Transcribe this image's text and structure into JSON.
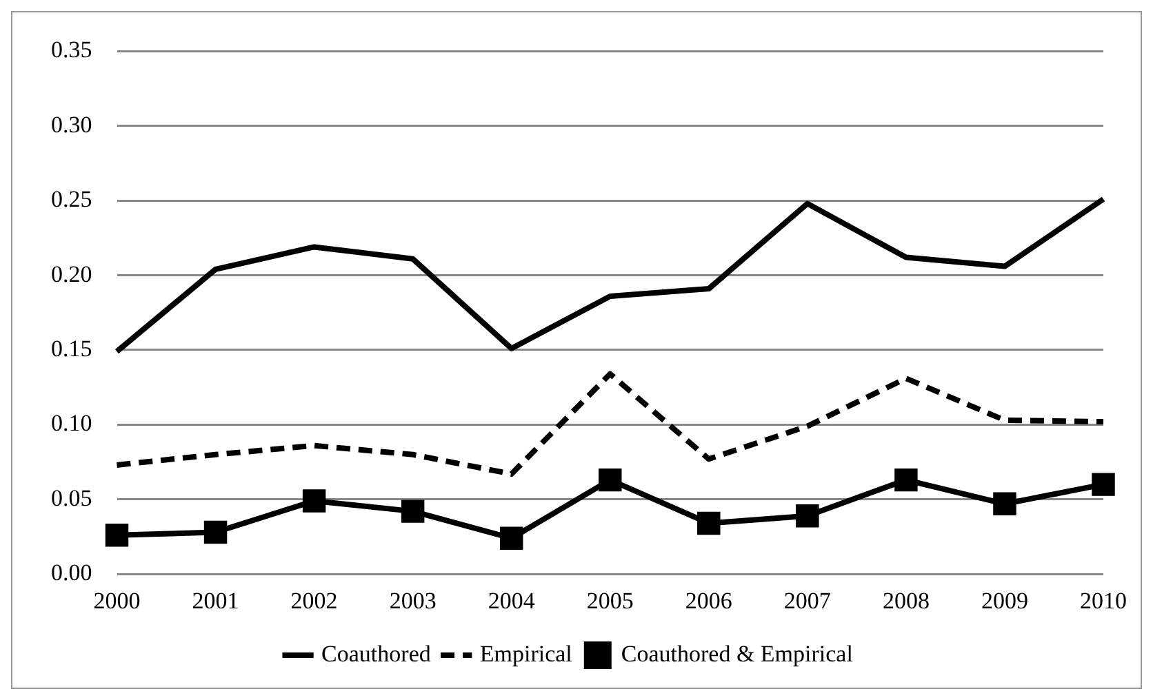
{
  "chart_data": {
    "type": "line",
    "categories": [
      "2000",
      "2001",
      "2002",
      "2003",
      "2004",
      "2005",
      "2006",
      "2007",
      "2008",
      "2009",
      "2010"
    ],
    "series": [
      {
        "name": "Coauthored",
        "color": "#000000",
        "line_style": "solid",
        "marker": "none",
        "values": [
          0.149,
          0.204,
          0.219,
          0.211,
          0.151,
          0.186,
          0.191,
          0.248,
          0.212,
          0.206,
          0.251
        ]
      },
      {
        "name": "Empirical",
        "color": "#000000",
        "line_style": "dashed",
        "marker": "none",
        "values": [
          0.073,
          0.08,
          0.086,
          0.08,
          0.067,
          0.134,
          0.077,
          0.099,
          0.131,
          0.103,
          0.102
        ]
      },
      {
        "name": "Coauthored & Empirical",
        "color": "#000000",
        "line_style": "solid",
        "marker": "square",
        "values": [
          0.026,
          0.028,
          0.049,
          0.042,
          0.024,
          0.063,
          0.034,
          0.039,
          0.063,
          0.047,
          0.06
        ]
      }
    ],
    "ylim": [
      0,
      0.35
    ],
    "yticks": [
      {
        "value": 0,
        "label": "0.00"
      },
      0.05,
      {
        "value": 0.1,
        "label": "0.10"
      },
      0.15,
      {
        "value": 0.2,
        "label": "0.20"
      },
      0.25,
      {
        "value": 0.3,
        "label": "0.30"
      },
      0.35
    ],
    "grid": "y",
    "legend": "bottom"
  }
}
